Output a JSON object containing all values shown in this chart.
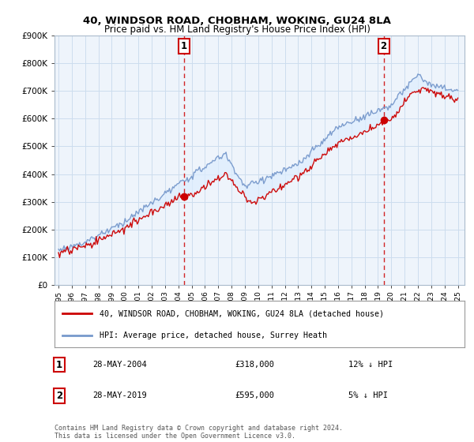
{
  "title": "40, WINDSOR ROAD, CHOBHAM, WOKING, GU24 8LA",
  "subtitle": "Price paid vs. HM Land Registry's House Price Index (HPI)",
  "ylim": [
    0,
    900000
  ],
  "yticks": [
    0,
    100000,
    200000,
    300000,
    400000,
    500000,
    600000,
    700000,
    800000,
    900000
  ],
  "sale1": {
    "date_num": 2004.42,
    "price": 318000,
    "label": "1",
    "date_str": "28-MAY-2004",
    "pct": "12% ↓ HPI"
  },
  "sale2": {
    "date_num": 2019.42,
    "price": 595000,
    "label": "2",
    "date_str": "28-MAY-2019",
    "pct": "5% ↓ HPI"
  },
  "legend_red_label": "40, WINDSOR ROAD, CHOBHAM, WOKING, GU24 8LA (detached house)",
  "legend_blue_label": "HPI: Average price, detached house, Surrey Heath",
  "footnote": "Contains HM Land Registry data © Crown copyright and database right 2024.\nThis data is licensed under the Open Government Licence v3.0.",
  "red_color": "#cc0000",
  "blue_color": "#7799cc",
  "fill_color": "#ddeeff",
  "dashed_color": "#cc0000",
  "bg_color": "#ffffff",
  "grid_color": "#ccddee",
  "box_color": "#cc0000",
  "xlim_left": 1994.7,
  "xlim_right": 2025.5
}
